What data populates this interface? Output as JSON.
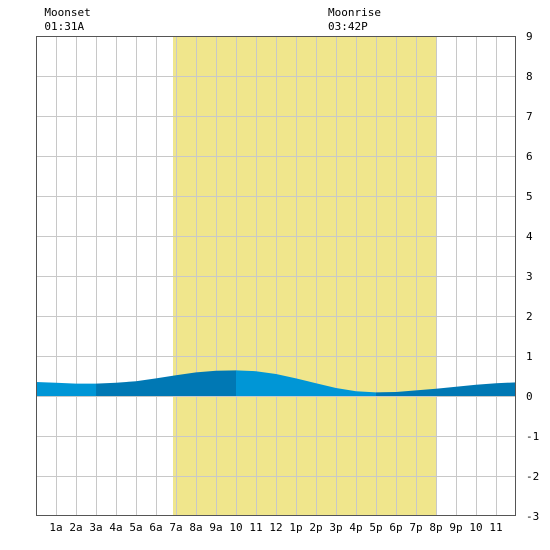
{
  "chart_data": {
    "type": "area",
    "x_tick_labels": [
      "1a",
      "2a",
      "3a",
      "4a",
      "5a",
      "6a",
      "7a",
      "8a",
      "9a",
      "10",
      "11",
      "12",
      "1p",
      "2p",
      "3p",
      "4p",
      "5p",
      "6p",
      "7p",
      "8p",
      "9p",
      "10",
      "11"
    ],
    "y_tick_labels": [
      "9",
      "8",
      "7",
      "6",
      "5",
      "4",
      "3",
      "2",
      "1",
      "0",
      "-1",
      "-2",
      "-3"
    ],
    "xlim": [
      0,
      24
    ],
    "ylim": [
      -3,
      9
    ],
    "grid": true,
    "daylight": {
      "start_hour": 6.85,
      "end_hour": 20.05,
      "color": "#f0e68c"
    },
    "moon_events": [
      {
        "label": "Moonset",
        "time": "01:31A",
        "hour": 1.52
      },
      {
        "label": "Moonrise",
        "time": "03:42P",
        "hour": 15.7
      }
    ],
    "series": [
      {
        "x": [
          0,
          1,
          2,
          3,
          4,
          5,
          6,
          7,
          8,
          9,
          10,
          11,
          12,
          13,
          14,
          15,
          16,
          17,
          18,
          19,
          20,
          21,
          22,
          23,
          24
        ],
        "values": [
          0.35,
          0.33,
          0.31,
          0.31,
          0.33,
          0.37,
          0.44,
          0.52,
          0.59,
          0.63,
          0.64,
          0.62,
          0.55,
          0.44,
          0.32,
          0.2,
          0.12,
          0.09,
          0.1,
          0.14,
          0.18,
          0.23,
          0.28,
          0.32,
          0.34
        ]
      }
    ],
    "colors": {
      "light_band": "#0096d6",
      "dark_band": "#0078b4",
      "grid": "#c8c8c8"
    }
  }
}
